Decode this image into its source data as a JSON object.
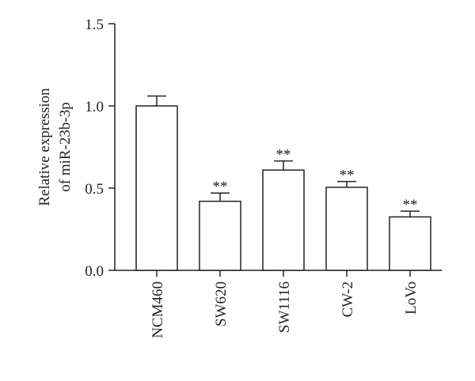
{
  "chart_data": {
    "type": "bar",
    "ylabel": [
      "Relative expression",
      "of miR-23b-3p"
    ],
    "categories": [
      "NCM460",
      "SW620",
      "SW1116",
      "CW-2",
      "LoVo"
    ],
    "values": [
      1.0,
      0.42,
      0.61,
      0.505,
      0.325
    ],
    "errors": [
      0.06,
      0.05,
      0.055,
      0.035,
      0.035
    ],
    "annotations": [
      null,
      "**",
      "**",
      "**",
      "**"
    ],
    "color": "#ffffff",
    "ylim": [
      0,
      1.5
    ],
    "yticks": [
      {
        "value": 0,
        "label": "0.0"
      },
      0.5,
      {
        "value": 1,
        "label": "1.0"
      },
      1.5
    ]
  }
}
